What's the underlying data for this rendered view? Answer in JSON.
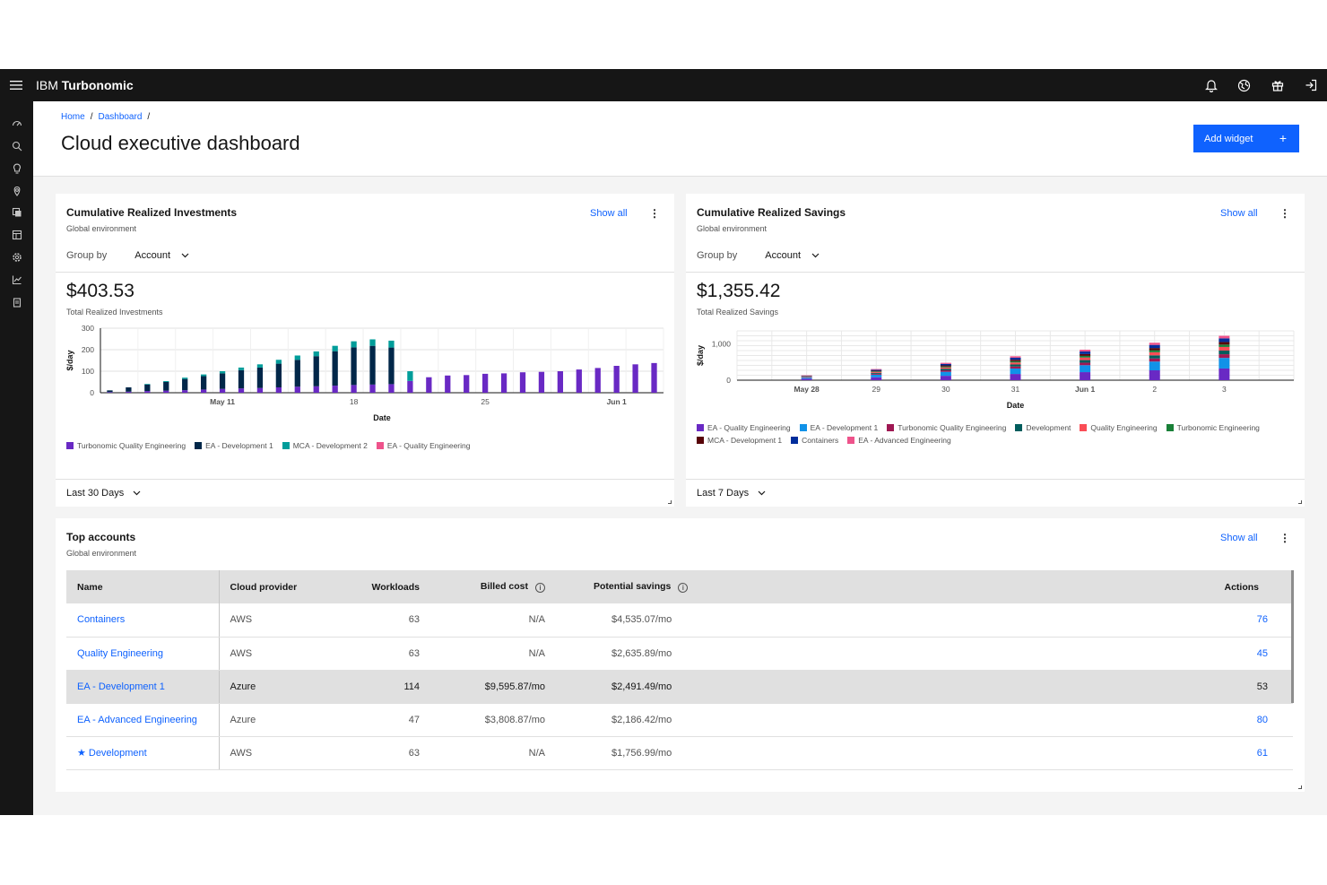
{
  "app": {
    "brand_prefix": "IBM",
    "brand_name": "Turbonomic"
  },
  "breadcrumb": [
    "Home",
    "Dashboard"
  ],
  "page_title": "Cloud executive dashboard",
  "add_widget_label": "Add widget",
  "add_widget_plus": "+",
  "widgets": {
    "investments": {
      "title": "Cumulative Realized Investments",
      "subtitle": "Global environment",
      "show_all": "Show all",
      "group_by_label": "Group by",
      "group_by_value": "Account",
      "total": "$403.53",
      "total_caption": "Total Realized Investments",
      "range": "Last 30 Days"
    },
    "savings": {
      "title": "Cumulative Realized Savings",
      "subtitle": "Global environment",
      "show_all": "Show all",
      "group_by_label": "Group by",
      "group_by_value": "Account",
      "total": "$1,355.42",
      "total_caption": "Total Realized Savings",
      "range": "Last 7 Days"
    },
    "top_accounts": {
      "title": "Top accounts",
      "subtitle": "Global environment",
      "show_all": "Show all",
      "columns": [
        "Name",
        "Cloud provider",
        "Workloads",
        "Billed cost",
        "Potential savings",
        "Actions"
      ],
      "rows": [
        {
          "name": "Containers",
          "provider": "AWS",
          "workloads": "63",
          "billed": "N/A",
          "savings": "$4,535.07/mo",
          "actions": "76",
          "starred": false
        },
        {
          "name": "Quality Engineering",
          "provider": "AWS",
          "workloads": "63",
          "billed": "N/A",
          "savings": "$2,635.89/mo",
          "actions": "45",
          "starred": false
        },
        {
          "name": "EA - Development 1",
          "provider": "Azure",
          "workloads": "114",
          "billed": "$9,595.87/mo",
          "savings": "$2,491.49/mo",
          "actions": "53",
          "starred": false
        },
        {
          "name": "EA - Advanced Engineering",
          "provider": "Azure",
          "workloads": "47",
          "billed": "$3,808.87/mo",
          "savings": "$2,186.42/mo",
          "actions": "80",
          "starred": false
        },
        {
          "name": "Development",
          "provider": "AWS",
          "workloads": "63",
          "billed": "N/A",
          "savings": "$1,756.99/mo",
          "actions": "61",
          "starred": true
        }
      ]
    }
  },
  "colors": {
    "accent": "#0f62fe",
    "purple": "#6929c4",
    "navy": "#012749",
    "teal": "#009d9a",
    "magenta": "#ee538b",
    "cyan": "#1192e8",
    "maroon": "#9f1853",
    "green_dark": "#005d5d",
    "red": "#fa4d56",
    "green": "#198038",
    "dark_red": "#570408",
    "blue_dark": "#002d9c"
  },
  "chart_data": [
    {
      "type": "bar",
      "stacked": true,
      "ylabel": "$/day",
      "xlabel": "Date",
      "ylim": [
        0,
        300
      ],
      "y_ticks": [
        0,
        100,
        200,
        300
      ],
      "x_tick_labels": [
        "May 11",
        "18",
        "25",
        "Jun 1"
      ],
      "x_tick_positions": [
        6,
        13,
        20,
        27
      ],
      "categories": [
        "1",
        "2",
        "3",
        "4",
        "5",
        "6",
        "7",
        "8",
        "9",
        "10",
        "11",
        "12",
        "13",
        "14",
        "15",
        "16",
        "17",
        "18",
        "19",
        "20",
        "21",
        "22",
        "23",
        "24",
        "25",
        "26",
        "27",
        "28",
        "29",
        "30"
      ],
      "series": [
        {
          "name": "Turbonomic Quality Engineering",
          "color": "#6929c4",
          "values": [
            3,
            5,
            8,
            10,
            12,
            15,
            18,
            20,
            22,
            25,
            28,
            30,
            33,
            36,
            38,
            40,
            55,
            72,
            80,
            82,
            88,
            90,
            95,
            97,
            100,
            108,
            115,
            125,
            132,
            138
          ]
        },
        {
          "name": "EA - Development 1",
          "color": "#012749",
          "values": [
            8,
            20,
            30,
            40,
            52,
            62,
            72,
            85,
            95,
            110,
            125,
            140,
            160,
            175,
            180,
            170,
            0,
            0,
            0,
            0,
            0,
            0,
            0,
            0,
            0,
            0,
            0,
            0,
            0,
            0
          ]
        },
        {
          "name": "MCA - Development 2",
          "color": "#009d9a",
          "values": [
            0,
            0,
            3,
            4,
            6,
            8,
            10,
            12,
            15,
            18,
            20,
            22,
            25,
            28,
            30,
            32,
            45,
            0,
            0,
            0,
            0,
            0,
            0,
            0,
            0,
            0,
            0,
            0,
            0,
            0
          ]
        },
        {
          "name": "EA - Quality Engineering",
          "color": "#ee538b",
          "values": [
            0,
            0,
            0,
            0,
            0,
            0,
            0,
            0,
            0,
            0,
            0,
            0,
            0,
            0,
            0,
            0,
            0,
            0,
            0,
            0,
            0,
            0,
            0,
            0,
            0,
            0,
            0,
            0,
            0,
            0
          ]
        }
      ]
    },
    {
      "type": "bar",
      "stacked": true,
      "ylabel": "$/day",
      "xlabel": "Date",
      "ylim": [
        0,
        1350
      ],
      "y_ticks": [
        0,
        1000
      ],
      "categories": [
        "May 28",
        "29",
        "30",
        "31",
        "Jun 1",
        "2",
        "3"
      ],
      "series": [
        {
          "name": "EA - Quality Engineering",
          "color": "#6929c4",
          "values": [
            40,
            80,
            120,
            170,
            220,
            270,
            320
          ]
        },
        {
          "name": "EA - Development 1",
          "color": "#1192e8",
          "values": [
            30,
            70,
            110,
            150,
            190,
            240,
            290
          ]
        },
        {
          "name": "Turbonomic Quality Engineering",
          "color": "#9f1853",
          "values": [
            10,
            25,
            40,
            55,
            70,
            85,
            100
          ]
        },
        {
          "name": "Development",
          "color": "#005d5d",
          "values": [
            10,
            25,
            40,
            55,
            70,
            85,
            100
          ]
        },
        {
          "name": "Quality Engineering",
          "color": "#fa4d56",
          "values": [
            10,
            25,
            40,
            55,
            70,
            85,
            100
          ]
        },
        {
          "name": "Turbonomic Engineering",
          "color": "#198038",
          "values": [
            5,
            15,
            25,
            35,
            45,
            55,
            65
          ]
        },
        {
          "name": "MCA - Development 1",
          "color": "#570408",
          "values": [
            10,
            20,
            30,
            40,
            50,
            60,
            70
          ]
        },
        {
          "name": "Containers",
          "color": "#002d9c",
          "values": [
            10,
            25,
            40,
            55,
            70,
            85,
            100
          ]
        },
        {
          "name": "EA - Advanced Engineering",
          "color": "#ee538b",
          "values": [
            10,
            20,
            30,
            40,
            50,
            60,
            70
          ]
        }
      ]
    }
  ]
}
